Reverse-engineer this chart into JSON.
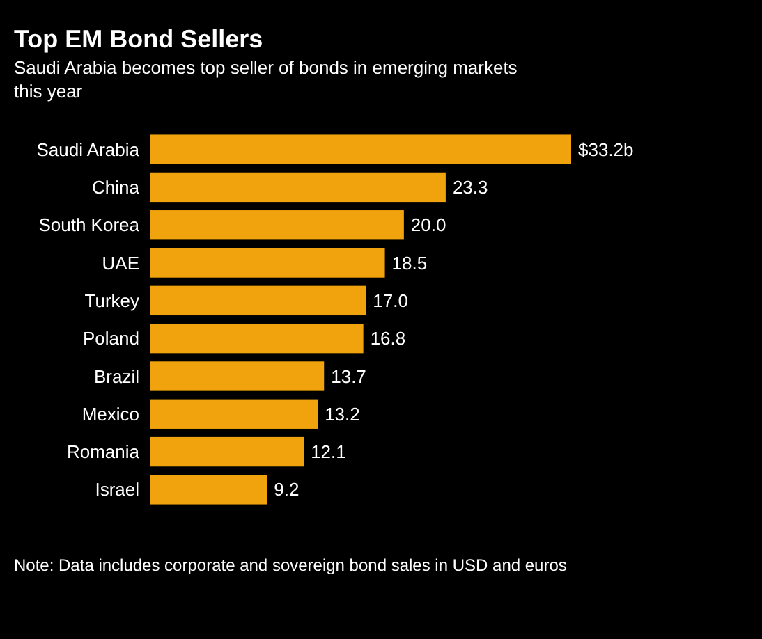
{
  "chart_data": {
    "type": "bar",
    "orientation": "horizontal",
    "title": "Top EM Bond Sellers",
    "subtitle": "Saudi Arabia becomes top seller of bonds in emerging markets this year",
    "categories": [
      "Saudi Arabia",
      "China",
      "South Korea",
      "UAE",
      "Turkey",
      "Poland",
      "Brazil",
      "Mexico",
      "Romania",
      "Israel"
    ],
    "values": [
      33.2,
      23.3,
      20.0,
      18.5,
      17.0,
      16.8,
      13.7,
      13.2,
      12.1,
      9.2
    ],
    "value_labels": [
      "$33.2b",
      "23.3",
      "20.0",
      "18.5",
      "17.0",
      "16.8",
      "13.7",
      "13.2",
      "12.1",
      "9.2"
    ],
    "color": "#f0a30c",
    "annotations": [
      "Note: Data includes corporate and sovereign bond sales in USD and euros"
    ]
  }
}
